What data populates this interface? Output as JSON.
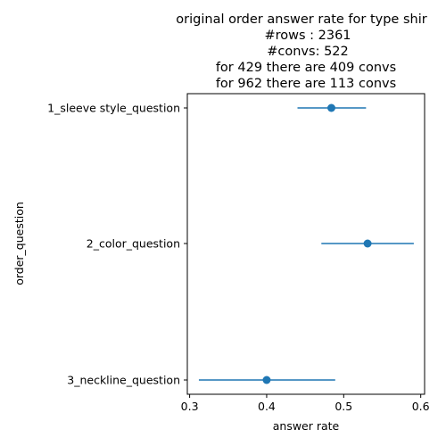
{
  "chart_data": {
    "type": "scatter",
    "title_lines": [
      "original order answer rate for type shir",
      "#rows : 2361",
      "#convs: 522",
      "for 429 there are 409 convs",
      "for 962 there are 113 convs"
    ],
    "xlabel": "answer rate",
    "ylabel": "order_question",
    "xlim": [
      0.297,
      0.605
    ],
    "xticks": [
      0.3,
      0.4,
      0.5,
      0.6
    ],
    "xtick_labels": [
      "0.3",
      "0.4",
      "0.5",
      "0.6"
    ],
    "categories": [
      "1_sleeve style_question",
      "2_color_question",
      "3_neckline_question"
    ],
    "series": [
      {
        "values": [
          0.484,
          0.531,
          0.4
        ],
        "ci_low": [
          0.44,
          0.471,
          0.312
        ],
        "ci_high": [
          0.529,
          0.591,
          0.489
        ]
      }
    ],
    "grid": false,
    "color": "#1f77b4"
  }
}
